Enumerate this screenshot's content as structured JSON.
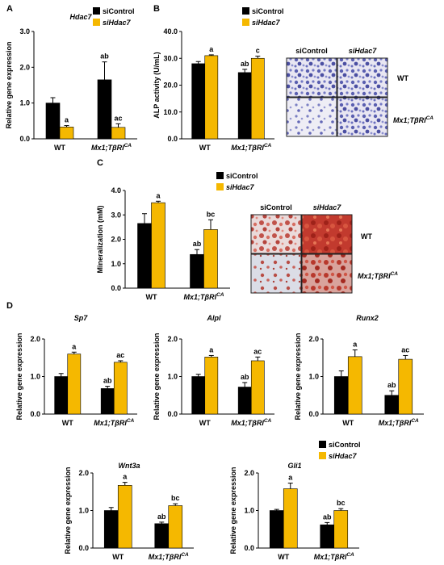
{
  "colors": {
    "siControl": "#000000",
    "siHdac7": "#F5B800"
  },
  "panels": {
    "A": {
      "label": "A",
      "title": "Hdac7"
    },
    "B": {
      "label": "B"
    },
    "C": {
      "label": "C"
    },
    "D": {
      "label": "D"
    }
  },
  "legend": {
    "siControl": "siControl",
    "siHdac7": "siHdac7"
  },
  "micrographs": {
    "B": {
      "cols": [
        "siControl",
        "siHdac7"
      ],
      "rows": [
        "WT",
        "Mx1;TβRI^CA"
      ]
    },
    "C": {
      "cols": [
        "siControl",
        "siHdac7"
      ],
      "rows": [
        "WT",
        "Mx1;TβRI^CA"
      ]
    }
  },
  "chart_data": [
    {
      "id": "A",
      "type": "bar",
      "title": "Hdac7",
      "ylabel": "Relative gene expression",
      "ylim": [
        0,
        3
      ],
      "yticks": [
        "0.0",
        "1.0",
        "2.0",
        "3.0"
      ],
      "categories": [
        "WT",
        "Mx1;TβRI^CA"
      ],
      "series": [
        {
          "name": "siControl",
          "values": [
            1.0,
            1.65
          ],
          "errors": [
            0.15,
            0.5
          ]
        },
        {
          "name": "siHdac7",
          "values": [
            0.33,
            0.32
          ],
          "errors": [
            0.04,
            0.1
          ]
        }
      ],
      "annotations": [
        [
          "",
          "a"
        ],
        [
          "ab",
          "ac"
        ]
      ]
    },
    {
      "id": "B",
      "type": "bar",
      "title": "",
      "ylabel": "ALP activity (U/mL)",
      "ylim": [
        0,
        40
      ],
      "yticks": [
        "0.0",
        "10.0",
        "20.0",
        "30.0",
        "40.0"
      ],
      "categories": [
        "WT",
        "Mx1;TβRI^CA"
      ],
      "series": [
        {
          "name": "siControl",
          "values": [
            28.0,
            24.7
          ],
          "errors": [
            0.8,
            1.2
          ]
        },
        {
          "name": "siHdac7",
          "values": [
            31.0,
            30.0
          ],
          "errors": [
            0.3,
            0.8
          ]
        }
      ],
      "annotations": [
        [
          "",
          "a"
        ],
        [
          "ab",
          "c"
        ]
      ]
    },
    {
      "id": "C",
      "type": "bar",
      "title": "",
      "ylabel": "Mineralization (mM)",
      "ylim": [
        0,
        4
      ],
      "yticks": [
        "0.0",
        "1.0",
        "2.0",
        "3.0",
        "4.0"
      ],
      "categories": [
        "WT",
        "Mx1;TβRI^CA"
      ],
      "series": [
        {
          "name": "siControl",
          "values": [
            2.65,
            1.38
          ],
          "errors": [
            0.4,
            0.2
          ]
        },
        {
          "name": "siHdac7",
          "values": [
            3.5,
            2.4
          ],
          "errors": [
            0.06,
            0.4
          ]
        }
      ],
      "annotations": [
        [
          "",
          "a"
        ],
        [
          "ab",
          "bc"
        ]
      ]
    },
    {
      "id": "D1",
      "type": "bar",
      "title": "Sp7",
      "ylabel": "Relative gene expression",
      "ylim": [
        0,
        2
      ],
      "yticks": [
        "0.0",
        "1.0",
        "2.0"
      ],
      "categories": [
        "WT",
        "Mx1;TβRI^CA"
      ],
      "series": [
        {
          "name": "siControl",
          "values": [
            1.0,
            0.68
          ],
          "errors": [
            0.08,
            0.06
          ]
        },
        {
          "name": "siHdac7",
          "values": [
            1.6,
            1.38
          ],
          "errors": [
            0.05,
            0.04
          ]
        }
      ],
      "annotations": [
        [
          "",
          "a"
        ],
        [
          "ab",
          "ac"
        ]
      ]
    },
    {
      "id": "D2",
      "type": "bar",
      "title": "Alpl",
      "ylabel": "Relative gene expression",
      "ylim": [
        0,
        2
      ],
      "yticks": [
        "0.0",
        "1.0",
        "2.0"
      ],
      "categories": [
        "WT",
        "Mx1;TβRI^CA"
      ],
      "series": [
        {
          "name": "siControl",
          "values": [
            1.0,
            0.72
          ],
          "errors": [
            0.06,
            0.12
          ]
        },
        {
          "name": "siHdac7",
          "values": [
            1.52,
            1.42
          ],
          "errors": [
            0.04,
            0.1
          ]
        }
      ],
      "annotations": [
        [
          "",
          "a"
        ],
        [
          "ab",
          "ac"
        ]
      ]
    },
    {
      "id": "D3",
      "type": "bar",
      "title": "Runx2",
      "ylabel": "Relative gene expression",
      "ylim": [
        0,
        2
      ],
      "yticks": [
        "0.0",
        "1.0",
        "2.0"
      ],
      "categories": [
        "WT",
        "Mx1;TβRI^CA"
      ],
      "series": [
        {
          "name": "siControl",
          "values": [
            1.0,
            0.5
          ],
          "errors": [
            0.15,
            0.12
          ]
        },
        {
          "name": "siHdac7",
          "values": [
            1.53,
            1.46
          ],
          "errors": [
            0.18,
            0.1
          ]
        }
      ],
      "annotations": [
        [
          "",
          "a"
        ],
        [
          "ab",
          "ac"
        ]
      ]
    },
    {
      "id": "D4",
      "type": "bar",
      "title": "Wnt3a",
      "ylabel": "Relative gene expression",
      "ylim": [
        0,
        2
      ],
      "yticks": [
        "0.0",
        "1.0",
        "2.0"
      ],
      "categories": [
        "WT",
        "Mx1;TβRI^CA"
      ],
      "series": [
        {
          "name": "siControl",
          "values": [
            1.0,
            0.65
          ],
          "errors": [
            0.08,
            0.04
          ]
        },
        {
          "name": "siHdac7",
          "values": [
            1.67,
            1.13
          ],
          "errors": [
            0.08,
            0.05
          ]
        }
      ],
      "annotations": [
        [
          "",
          "a"
        ],
        [
          "ab",
          "bc"
        ]
      ]
    },
    {
      "id": "D5",
      "type": "bar",
      "title": "Gli1",
      "ylabel": "Relative gene expression",
      "ylim": [
        0,
        2
      ],
      "yticks": [
        "0.0",
        "1.0",
        "2.0"
      ],
      "categories": [
        "WT",
        "Mx1;TβRI^CA"
      ],
      "series": [
        {
          "name": "siControl",
          "values": [
            1.0,
            0.62
          ],
          "errors": [
            0.03,
            0.06
          ]
        },
        {
          "name": "siHdac7",
          "values": [
            1.58,
            1.0
          ],
          "errors": [
            0.15,
            0.05
          ]
        }
      ],
      "annotations": [
        [
          "",
          "a"
        ],
        [
          "ab",
          "bc"
        ]
      ]
    }
  ]
}
